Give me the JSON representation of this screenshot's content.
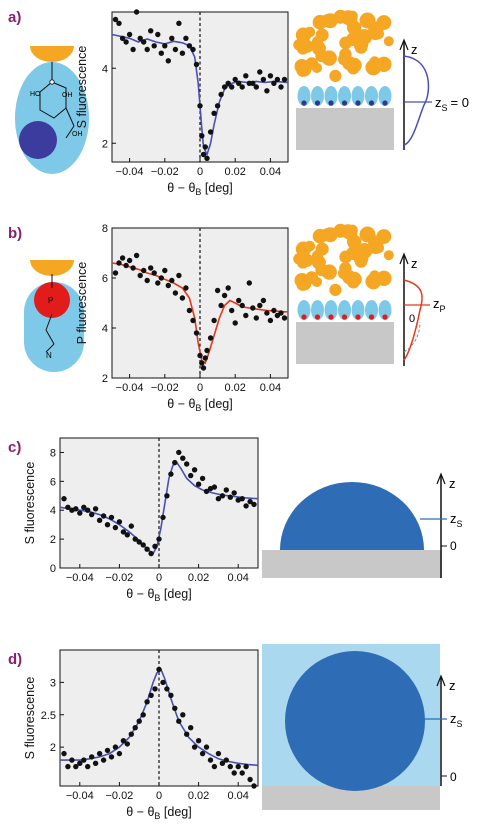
{
  "colors": {
    "plot_bg": "#eeeeee",
    "fit_blue": "#4a4fb5",
    "fit_red": "#e23a1c",
    "water_light": "#a9d8ef",
    "drop_blue": "#2e6db5",
    "lipid_orange": "#f5a623",
    "head_blue": "#7ec8e8",
    "dot_navy": "#2b3a8a",
    "dot_red": "#e21b1b",
    "substrate": "#c8c8c8",
    "letter": "#8a1e6e"
  },
  "panels": [
    {
      "letter": "a)"
    },
    {
      "letter": "b)"
    },
    {
      "letter": "c)"
    },
    {
      "letter": "d)"
    }
  ],
  "schematics": {
    "z_label": "z",
    "a_zs": "z",
    "a_zs_sub": "S",
    "a_zs_eq": "= 0",
    "b_zp": "z",
    "b_zp_sub": "P",
    "b_zero": "0",
    "c_zs": "z",
    "c_zs_sub": "S",
    "c_zero": "0",
    "d_zs": "z",
    "d_zs_sub": "S",
    "d_zero": "0"
  },
  "chart_data": [
    {
      "type": "scatter",
      "panel": "a",
      "xlabel": "θ − θ_B [deg]",
      "ylabel": "S fluorescence",
      "xlim": [
        -0.05,
        0.05
      ],
      "ylim": [
        1.5,
        5.5
      ],
      "xticks": [
        -0.04,
        -0.02,
        0,
        0.02,
        0.04
      ],
      "xticklabels": [
        "−0.04",
        "−0.02",
        "0",
        "0.02",
        "0.04"
      ],
      "yticks": [
        2,
        4
      ],
      "yticklabels": [
        "2",
        "4"
      ],
      "points": [
        [
          -0.048,
          5.3
        ],
        [
          -0.046,
          5.2
        ],
        [
          -0.044,
          4.8
        ],
        [
          -0.042,
          4.7
        ],
        [
          -0.04,
          4.9
        ],
        [
          -0.038,
          4.5
        ],
        [
          -0.036,
          5.5
        ],
        [
          -0.034,
          4.8
        ],
        [
          -0.032,
          4.7
        ],
        [
          -0.03,
          4.5
        ],
        [
          -0.028,
          5.0
        ],
        [
          -0.026,
          4.6
        ],
        [
          -0.024,
          4.9
        ],
        [
          -0.022,
          4.4
        ],
        [
          -0.02,
          4.6
        ],
        [
          -0.018,
          4.2
        ],
        [
          -0.016,
          4.8
        ],
        [
          -0.014,
          4.5
        ],
        [
          -0.012,
          5.2
        ],
        [
          -0.01,
          4.4
        ],
        [
          -0.008,
          4.8
        ],
        [
          -0.006,
          4.6
        ],
        [
          -0.004,
          4.5
        ],
        [
          -0.002,
          4.1
        ],
        [
          0.0,
          3.0
        ],
        [
          0.001,
          2.2
        ],
        [
          0.002,
          1.7
        ],
        [
          0.003,
          1.9
        ],
        [
          0.004,
          1.6
        ],
        [
          0.006,
          2.3
        ],
        [
          0.008,
          2.8
        ],
        [
          0.01,
          3.0
        ],
        [
          0.012,
          3.3
        ],
        [
          0.014,
          3.5
        ],
        [
          0.016,
          3.6
        ],
        [
          0.018,
          3.5
        ],
        [
          0.02,
          3.7
        ],
        [
          0.022,
          3.6
        ],
        [
          0.024,
          3.5
        ],
        [
          0.026,
          3.8
        ],
        [
          0.028,
          3.6
        ],
        [
          0.03,
          3.6
        ],
        [
          0.032,
          3.5
        ],
        [
          0.034,
          3.9
        ],
        [
          0.036,
          3.7
        ],
        [
          0.038,
          3.4
        ],
        [
          0.04,
          3.8
        ],
        [
          0.042,
          3.6
        ],
        [
          0.044,
          3.7
        ],
        [
          0.046,
          3.5
        ],
        [
          0.048,
          3.7
        ]
      ],
      "fit": [
        [
          -0.05,
          4.9
        ],
        [
          -0.045,
          4.85
        ],
        [
          -0.04,
          4.8
        ],
        [
          -0.035,
          4.7
        ],
        [
          -0.03,
          4.78
        ],
        [
          -0.025,
          4.7
        ],
        [
          -0.02,
          4.65
        ],
        [
          -0.015,
          4.72
        ],
        [
          -0.01,
          4.68
        ],
        [
          -0.006,
          4.6
        ],
        [
          -0.003,
          4.3
        ],
        [
          -0.001,
          3.6
        ],
        [
          0.001,
          2.4
        ],
        [
          0.002,
          1.9
        ],
        [
          0.004,
          1.7
        ],
        [
          0.006,
          2.0
        ],
        [
          0.008,
          2.5
        ],
        [
          0.011,
          3.1
        ],
        [
          0.014,
          3.45
        ],
        [
          0.018,
          3.6
        ],
        [
          0.022,
          3.65
        ],
        [
          0.027,
          3.62
        ],
        [
          0.032,
          3.65
        ],
        [
          0.037,
          3.62
        ],
        [
          0.042,
          3.65
        ],
        [
          0.047,
          3.63
        ],
        [
          0.05,
          3.62
        ]
      ],
      "fit_color": "#4a4fb5"
    },
    {
      "type": "scatter",
      "panel": "b",
      "xlabel": "θ − θ_B [deg]",
      "ylabel": "P fluorescence",
      "xlim": [
        -0.05,
        0.05
      ],
      "ylim": [
        2,
        8
      ],
      "xticks": [
        -0.04,
        -0.02,
        0,
        0.02,
        0.04
      ],
      "xticklabels": [
        "−0.04",
        "−0.02",
        "0",
        "0.02",
        "0.04"
      ],
      "yticks": [
        2,
        4,
        6,
        8
      ],
      "yticklabels": [
        "2",
        "4",
        "6",
        "8"
      ],
      "points": [
        [
          -0.048,
          6.2
        ],
        [
          -0.046,
          6.6
        ],
        [
          -0.044,
          6.8
        ],
        [
          -0.042,
          6.5
        ],
        [
          -0.04,
          6.7
        ],
        [
          -0.038,
          6.4
        ],
        [
          -0.036,
          6.9
        ],
        [
          -0.034,
          6.1
        ],
        [
          -0.032,
          6.3
        ],
        [
          -0.03,
          5.9
        ],
        [
          -0.028,
          6.4
        ],
        [
          -0.026,
          6.2
        ],
        [
          -0.024,
          5.8
        ],
        [
          -0.022,
          6.0
        ],
        [
          -0.02,
          6.3
        ],
        [
          -0.018,
          5.7
        ],
        [
          -0.016,
          5.9
        ],
        [
          -0.014,
          5.4
        ],
        [
          -0.012,
          6.1
        ],
        [
          -0.01,
          5.2
        ],
        [
          -0.008,
          5.6
        ],
        [
          -0.006,
          4.7
        ],
        [
          -0.004,
          4.3
        ],
        [
          -0.002,
          3.8
        ],
        [
          0.0,
          2.9
        ],
        [
          0.001,
          2.6
        ],
        [
          0.002,
          2.4
        ],
        [
          0.003,
          2.8
        ],
        [
          0.004,
          3.1
        ],
        [
          0.006,
          3.6
        ],
        [
          0.008,
          4.3
        ],
        [
          0.01,
          5.5
        ],
        [
          0.012,
          4.9
        ],
        [
          0.014,
          5.3
        ],
        [
          0.016,
          5.6
        ],
        [
          0.018,
          4.7
        ],
        [
          0.02,
          4.2
        ],
        [
          0.022,
          5.1
        ],
        [
          0.024,
          4.9
        ],
        [
          0.026,
          4.5
        ],
        [
          0.028,
          5.8
        ],
        [
          0.03,
          4.8
        ],
        [
          0.032,
          4.4
        ],
        [
          0.034,
          4.9
        ],
        [
          0.036,
          5.1
        ],
        [
          0.038,
          4.6
        ],
        [
          0.04,
          4.3
        ],
        [
          0.042,
          4.7
        ],
        [
          0.044,
          4.5
        ],
        [
          0.046,
          4.6
        ],
        [
          0.048,
          4.4
        ]
      ],
      "fit": [
        [
          -0.05,
          6.6
        ],
        [
          -0.045,
          6.55
        ],
        [
          -0.04,
          6.45
        ],
        [
          -0.035,
          6.35
        ],
        [
          -0.03,
          6.2
        ],
        [
          -0.025,
          6.1
        ],
        [
          -0.02,
          5.95
        ],
        [
          -0.015,
          5.8
        ],
        [
          -0.01,
          5.6
        ],
        [
          -0.006,
          5.2
        ],
        [
          -0.003,
          4.4
        ],
        [
          -0.001,
          3.4
        ],
        [
          0.001,
          2.7
        ],
        [
          0.003,
          2.6
        ],
        [
          0.005,
          3.0
        ],
        [
          0.008,
          3.7
        ],
        [
          0.011,
          4.4
        ],
        [
          0.014,
          4.9
        ],
        [
          0.017,
          5.1
        ],
        [
          0.02,
          5.0
        ],
        [
          0.024,
          4.85
        ],
        [
          0.028,
          4.8
        ],
        [
          0.033,
          4.75
        ],
        [
          0.038,
          4.7
        ],
        [
          0.043,
          4.68
        ],
        [
          0.048,
          4.65
        ],
        [
          0.05,
          4.65
        ]
      ],
      "fit_color": "#e23a1c"
    },
    {
      "type": "scatter",
      "panel": "c",
      "xlabel": "θ − θ_B [deg]",
      "ylabel": "S fluorescence",
      "xlim": [
        -0.05,
        0.05
      ],
      "ylim": [
        0,
        9
      ],
      "xticks": [
        -0.04,
        -0.02,
        0,
        0.02,
        0.04
      ],
      "xticklabels": [
        "−0.04",
        "−0.02",
        "0",
        "0.02",
        "0.04"
      ],
      "yticks": [
        0,
        2,
        4,
        6,
        8
      ],
      "yticklabels": [
        "0",
        "2",
        "4",
        "6",
        "8"
      ],
      "points": [
        [
          -0.048,
          4.8
        ],
        [
          -0.046,
          4.2
        ],
        [
          -0.044,
          4.0
        ],
        [
          -0.042,
          4.1
        ],
        [
          -0.04,
          3.8
        ],
        [
          -0.038,
          4.2
        ],
        [
          -0.036,
          4.0
        ],
        [
          -0.034,
          3.7
        ],
        [
          -0.032,
          4.1
        ],
        [
          -0.03,
          3.3
        ],
        [
          -0.028,
          3.6
        ],
        [
          -0.026,
          3.0
        ],
        [
          -0.024,
          3.5
        ],
        [
          -0.022,
          2.8
        ],
        [
          -0.02,
          3.2
        ],
        [
          -0.018,
          2.5
        ],
        [
          -0.016,
          2.3
        ],
        [
          -0.014,
          2.9
        ],
        [
          -0.012,
          2.0
        ],
        [
          -0.01,
          1.8
        ],
        [
          -0.008,
          1.6
        ],
        [
          -0.006,
          1.3
        ],
        [
          -0.004,
          1.0
        ],
        [
          -0.002,
          1.5
        ],
        [
          0.0,
          2.0
        ],
        [
          0.002,
          3.5
        ],
        [
          0.004,
          5.0
        ],
        [
          0.006,
          6.5
        ],
        [
          0.008,
          7.3
        ],
        [
          0.01,
          8.0
        ],
        [
          0.012,
          7.6
        ],
        [
          0.014,
          7.2
        ],
        [
          0.016,
          6.4
        ],
        [
          0.018,
          6.8
        ],
        [
          0.02,
          5.8
        ],
        [
          0.022,
          6.2
        ],
        [
          0.024,
          5.3
        ],
        [
          0.026,
          5.5
        ],
        [
          0.028,
          5.6
        ],
        [
          0.03,
          4.8
        ],
        [
          0.032,
          5.0
        ],
        [
          0.034,
          5.4
        ],
        [
          0.036,
          4.9
        ],
        [
          0.038,
          5.2
        ],
        [
          0.04,
          4.7
        ],
        [
          0.042,
          4.8
        ],
        [
          0.044,
          4.3
        ],
        [
          0.046,
          4.6
        ],
        [
          0.048,
          4.4
        ]
      ],
      "fit": [
        [
          -0.05,
          4.2
        ],
        [
          -0.045,
          4.1
        ],
        [
          -0.04,
          4.0
        ],
        [
          -0.035,
          3.9
        ],
        [
          -0.03,
          3.7
        ],
        [
          -0.025,
          3.4
        ],
        [
          -0.02,
          3.0
        ],
        [
          -0.015,
          2.5
        ],
        [
          -0.01,
          1.9
        ],
        [
          -0.006,
          1.3
        ],
        [
          -0.003,
          1.0
        ],
        [
          -0.001,
          1.5
        ],
        [
          0.001,
          2.8
        ],
        [
          0.003,
          4.5
        ],
        [
          0.005,
          6.2
        ],
        [
          0.007,
          7.1
        ],
        [
          0.009,
          7.3
        ],
        [
          0.011,
          6.9
        ],
        [
          0.014,
          6.2
        ],
        [
          0.018,
          5.7
        ],
        [
          0.022,
          5.4
        ],
        [
          0.027,
          5.2
        ],
        [
          0.032,
          5.05
        ],
        [
          0.038,
          4.95
        ],
        [
          0.044,
          4.85
        ],
        [
          0.05,
          4.8
        ]
      ],
      "fit_color": "#4a4fb5"
    },
    {
      "type": "scatter",
      "panel": "d",
      "xlabel": "θ − θ_B [deg]",
      "ylabel": "S fluorescence",
      "xlim": [
        -0.05,
        0.05
      ],
      "ylim": [
        1.4,
        3.5
      ],
      "xticks": [
        -0.04,
        -0.02,
        0,
        0.02,
        0.04
      ],
      "xticklabels": [
        "−0.04",
        "−0.02",
        "0",
        "0.02",
        "0.04"
      ],
      "yticks": [
        2,
        2.5,
        3
      ],
      "yticklabels": [
        "2",
        "2.5",
        "3"
      ],
      "points": [
        [
          -0.048,
          1.9
        ],
        [
          -0.046,
          1.7
        ],
        [
          -0.044,
          1.8
        ],
        [
          -0.042,
          1.7
        ],
        [
          -0.04,
          1.75
        ],
        [
          -0.038,
          1.8
        ],
        [
          -0.036,
          1.7
        ],
        [
          -0.034,
          1.85
        ],
        [
          -0.032,
          1.75
        ],
        [
          -0.03,
          1.9
        ],
        [
          -0.028,
          1.8
        ],
        [
          -0.026,
          1.95
        ],
        [
          -0.024,
          1.85
        ],
        [
          -0.022,
          2.0
        ],
        [
          -0.02,
          1.9
        ],
        [
          -0.018,
          2.1
        ],
        [
          -0.016,
          2.05
        ],
        [
          -0.014,
          2.2
        ],
        [
          -0.012,
          2.3
        ],
        [
          -0.01,
          2.4
        ],
        [
          -0.008,
          2.5
        ],
        [
          -0.006,
          2.7
        ],
        [
          -0.004,
          2.8
        ],
        [
          -0.002,
          2.9
        ],
        [
          0.0,
          3.2
        ],
        [
          0.002,
          3.0
        ],
        [
          0.004,
          2.9
        ],
        [
          0.006,
          2.8
        ],
        [
          0.008,
          2.6
        ],
        [
          0.01,
          2.4
        ],
        [
          0.012,
          2.5
        ],
        [
          0.014,
          2.2
        ],
        [
          0.016,
          2.3
        ],
        [
          0.018,
          2.0
        ],
        [
          0.02,
          2.1
        ],
        [
          0.022,
          1.9
        ],
        [
          0.024,
          2.0
        ],
        [
          0.026,
          1.8
        ],
        [
          0.028,
          1.7
        ],
        [
          0.03,
          1.9
        ],
        [
          0.032,
          1.75
        ],
        [
          0.034,
          1.8
        ],
        [
          0.036,
          1.7
        ],
        [
          0.038,
          1.6
        ],
        [
          0.04,
          1.7
        ],
        [
          0.042,
          1.6
        ],
        [
          0.044,
          1.7
        ],
        [
          0.046,
          1.5
        ],
        [
          0.048,
          1.4
        ]
      ],
      "fit": [
        [
          -0.05,
          1.8
        ],
        [
          -0.045,
          1.8
        ],
        [
          -0.04,
          1.8
        ],
        [
          -0.035,
          1.82
        ],
        [
          -0.03,
          1.85
        ],
        [
          -0.025,
          1.9
        ],
        [
          -0.02,
          2.0
        ],
        [
          -0.015,
          2.15
        ],
        [
          -0.01,
          2.4
        ],
        [
          -0.006,
          2.7
        ],
        [
          -0.003,
          3.0
        ],
        [
          -0.001,
          3.15
        ],
        [
          0.001,
          3.2
        ],
        [
          0.003,
          3.05
        ],
        [
          0.006,
          2.75
        ],
        [
          0.01,
          2.4
        ],
        [
          0.015,
          2.15
        ],
        [
          0.02,
          2.0
        ],
        [
          0.025,
          1.9
        ],
        [
          0.03,
          1.82
        ],
        [
          0.035,
          1.78
        ],
        [
          0.04,
          1.75
        ],
        [
          0.045,
          1.73
        ],
        [
          0.05,
          1.72
        ]
      ],
      "fit_color": "#4a4fb5"
    }
  ]
}
